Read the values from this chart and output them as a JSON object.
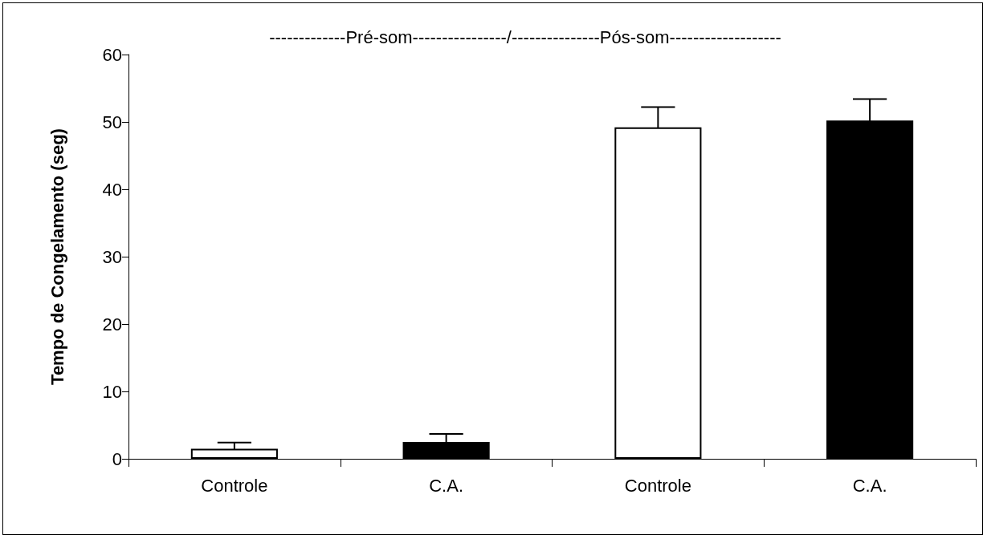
{
  "chart_data": {
    "type": "bar",
    "title": "-------------Pré-som----------------/---------------Pós-som-------------------",
    "ylabel": "Tempo de Congelamento (seg)",
    "categories": [
      "Controle",
      "C.A.",
      "Controle",
      "C.A."
    ],
    "values": [
      1.5,
      2.5,
      49.2,
      50.2
    ],
    "colors": [
      "#ffffff",
      "#000000",
      "#ffffff",
      "#000000"
    ],
    "errors": [
      0.9,
      1.2,
      3.0,
      3.2
    ],
    "ylim": [
      0,
      60
    ],
    "yticks": [
      0,
      10,
      20,
      30,
      40,
      50,
      60
    ],
    "grid": false
  }
}
